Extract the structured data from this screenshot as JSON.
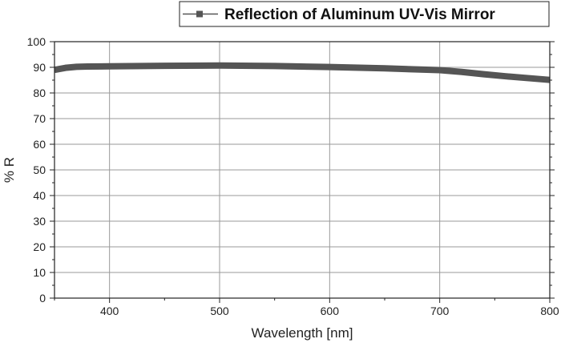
{
  "chart_data": {
    "type": "line",
    "title": "",
    "xlabel": "Wavelength [nm]",
    "ylabel": "% R",
    "xlim": [
      350,
      800
    ],
    "ylim": [
      0,
      100
    ],
    "x_ticks": [
      400,
      500,
      600,
      700,
      800
    ],
    "y_ticks": [
      0,
      10,
      20,
      30,
      40,
      50,
      60,
      70,
      80,
      90,
      100
    ],
    "grid": true,
    "legend_position": "top-right",
    "series": [
      {
        "name": "Reflection of Aluminum UV-Vis Mirror",
        "color": "#555555",
        "marker": "square",
        "x": [
          350,
          360,
          370,
          380,
          400,
          450,
          500,
          550,
          600,
          650,
          700,
          720,
          740,
          760,
          780,
          800
        ],
        "y": [
          89,
          89.8,
          90.2,
          90.3,
          90.4,
          90.6,
          90.7,
          90.5,
          90.1,
          89.6,
          88.9,
          88.2,
          87.3,
          86.5,
          85.8,
          85.1
        ]
      }
    ]
  }
}
